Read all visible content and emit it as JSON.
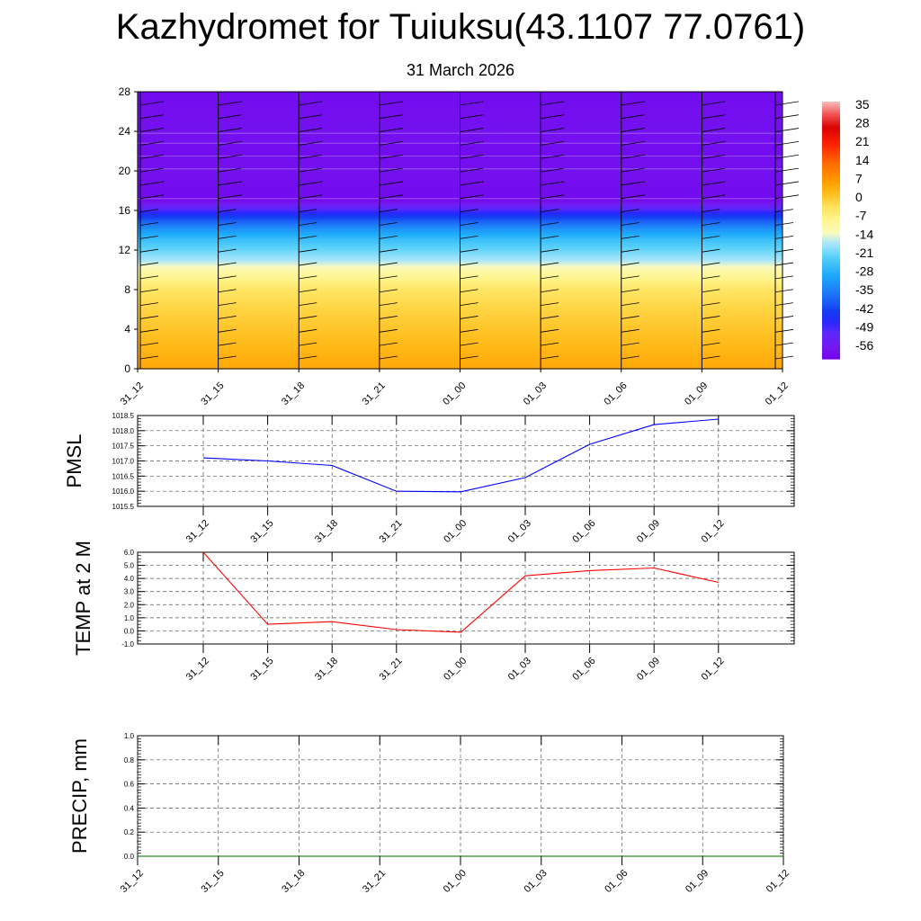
{
  "title": "Kazhydromet for Tuiuksu(43.1107 77.0761)",
  "subtitle": "31 March 2026",
  "chart_data": [
    {
      "type": "heatmap",
      "title": "",
      "x_ticks": [
        "31_12",
        "31_15",
        "31_18",
        "31_21",
        "01_00",
        "01_03",
        "01_06",
        "01_09",
        "01_12"
      ],
      "y_ticks": [
        0,
        4,
        8,
        12,
        16,
        20,
        24,
        28
      ],
      "ylim": [
        0,
        28
      ],
      "colorbar": {
        "labels": [
          35,
          28,
          21,
          14,
          7,
          0,
          -7,
          -14,
          -21,
          -28,
          -35,
          -42,
          -49,
          -56
        ],
        "vmin": -60,
        "vmax": 38
      },
      "temperature_profile": {
        "heights": [
          0,
          2,
          4,
          6,
          8,
          10,
          11,
          12,
          13,
          14,
          15,
          16,
          17,
          18,
          20,
          22,
          24,
          28
        ],
        "values": [
          6,
          4,
          2,
          0,
          -3,
          -10,
          -16,
          -20,
          -24,
          -30,
          -38,
          -48,
          -58,
          -58,
          -57,
          -58,
          -57,
          -58
        ]
      },
      "wind_barbs": "present"
    },
    {
      "type": "line",
      "ylabel": "PMSL",
      "ylim": [
        1015.5,
        1018.5
      ],
      "y_ticks": [
        "1018.5",
        "1018.0",
        "1017.5",
        "1017.0",
        "1016.5",
        "1016.0",
        "1015.5"
      ],
      "x_ticks": [
        "31_12",
        "31_15",
        "31_18",
        "31_21",
        "01_00",
        "01_03",
        "01_06",
        "01_09",
        "01_12"
      ],
      "series": [
        {
          "values": [
            1017.1,
            1017.0,
            1016.85,
            1016.0,
            1015.98,
            1016.45,
            1017.55,
            1018.2,
            1018.38
          ],
          "color": "#0000ff"
        }
      ]
    },
    {
      "type": "line",
      "ylabel": "TEMP at 2 M",
      "ylim": [
        -1.0,
        6.0
      ],
      "y_ticks": [
        "6.0",
        "5.0",
        "4.0",
        "3.0",
        "2.0",
        "1.0",
        "0.0",
        "-1.0"
      ],
      "x_ticks": [
        "31_12",
        "31_15",
        "31_18",
        "31_21",
        "01_00",
        "01_03",
        "01_06",
        "01_09",
        "01_12"
      ],
      "series": [
        {
          "values": [
            6.0,
            0.5,
            0.7,
            0.1,
            -0.1,
            4.2,
            4.6,
            4.8,
            3.7
          ],
          "color": "#ff0000"
        }
      ]
    },
    {
      "type": "line",
      "ylabel": "PRECIP, mm",
      "ylim": [
        0.0,
        1.0
      ],
      "y_ticks": [
        "1.0",
        "0.8",
        "0.6",
        "0.4",
        "0.2",
        "0.0"
      ],
      "x_ticks": [
        "31_12",
        "31_15",
        "31_18",
        "31_21",
        "01_00",
        "01_03",
        "01_06",
        "01_09",
        "01_12"
      ],
      "series": [
        {
          "values": [
            0,
            0,
            0,
            0,
            0,
            0,
            0,
            0,
            0
          ],
          "color": "#006400"
        }
      ]
    }
  ]
}
